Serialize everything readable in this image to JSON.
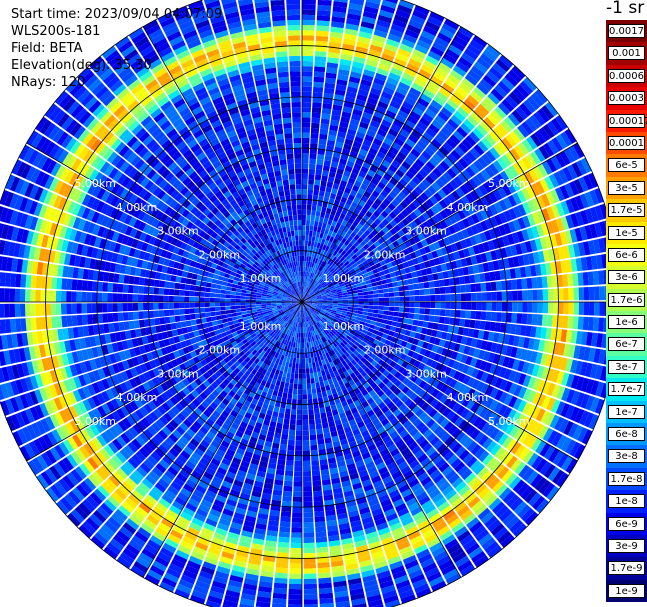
{
  "info": {
    "start_time": "Start time: 2023/09/04 04:07:09",
    "device": "WLS200s-181",
    "field": "Field: BETA",
    "elevation": "Elevation(deg): 35.30",
    "nrays": "NRays: 120"
  },
  "colorbar": {
    "unit_label": "-1 sr",
    "ticks": [
      "0.0017",
      "0.001",
      "0.0006",
      "0.0003",
      "0.00017",
      "0.0001",
      "6e-5",
      "3e-5",
      "1.7e-5",
      "1e-5",
      "6e-6",
      "3e-6",
      "1.7e-6",
      "1e-6",
      "6e-7",
      "3e-7",
      "1.7e-7",
      "1e-7",
      "6e-8",
      "3e-8",
      "1.7e-8",
      "1e-8",
      "6e-9",
      "3e-9",
      "1.7e-9",
      "1e-9"
    ],
    "colors": [
      "#7a0000",
      "#a00000",
      "#c80000",
      "#e80000",
      "#ff1a00",
      "#ff4a00",
      "#ff7a00",
      "#ffa000",
      "#ffc800",
      "#ffe800",
      "#f4ff10",
      "#d6ff30",
      "#b0ff50",
      "#88ff78",
      "#5cffa0",
      "#30ffc8",
      "#00e8f0",
      "#00c0ff",
      "#0098ff",
      "#0070ff",
      "#0048ff",
      "#0020ff",
      "#0000e8",
      "#0000c0",
      "#000098",
      "#000070"
    ]
  },
  "chart_data": {
    "type": "heatmap",
    "projection": "polar (PPI scan)",
    "field": "BETA",
    "elevation_deg": 35.3,
    "n_rays": 120,
    "range_ring_labels": [
      "1.00km",
      "2.00km",
      "3.00km",
      "4.00km",
      "5.00km"
    ],
    "range_rings_km": [
      1,
      2,
      3,
      4,
      5
    ],
    "max_range_km": 6.2,
    "radial_profile": {
      "range_km": [
        0.0,
        0.5,
        1.0,
        2.0,
        3.0,
        4.0,
        4.6,
        4.9,
        5.1,
        5.3,
        5.5,
        6.2
      ],
      "beta_typical": [
        1e-08,
        1.7e-08,
        1e-08,
        1e-08,
        1e-08,
        1e-08,
        1.7e-08,
        3e-06,
        3e-05,
        3e-06,
        1e-08,
        1e-08
      ]
    }
  }
}
